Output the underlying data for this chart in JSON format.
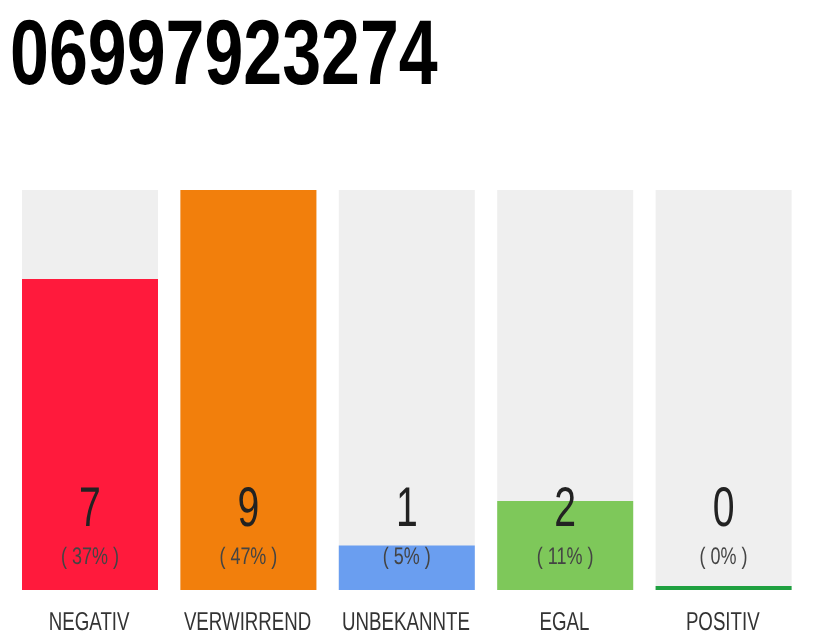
{
  "chart_data": {
    "type": "bar",
    "title": "06997923274",
    "categories": [
      "NEGATIV",
      "VERWIRREND",
      "UNBEKANNTE",
      "EGAL",
      "POSITIV"
    ],
    "values": [
      7,
      9,
      1,
      2,
      0
    ],
    "colors": [
      "#ff1a3c",
      "#f27f0c",
      "#6a9ef0",
      "#7ec85a",
      "#1fa040"
    ],
    "value_labels": [
      "7",
      "9",
      "1",
      "2",
      "0"
    ],
    "annotations": [
      "( 37% )",
      "( 47% )",
      "( 5% )",
      "( 11% )",
      "( 0% )"
    ]
  }
}
